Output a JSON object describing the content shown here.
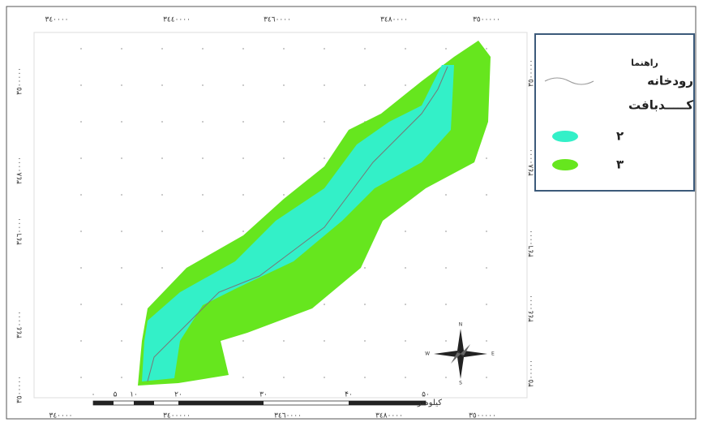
{
  "coords": {
    "top": [
      "۳٤۰۰۰۰",
      "۳٤٤۰۰۰۰",
      "۳٤٦۰۰۰۰",
      "۳٤۸۰۰۰۰",
      "۳٥۰۰۰۰۰"
    ],
    "bottom": [
      "۳٤۰۰۰۰",
      "۳٤۰۰۰۰۰",
      "۳٤٦۰۰۰۰",
      "۳٤۸۰۰۰۰",
      "۳٥۰۰۰۰۰"
    ],
    "left": [
      "۳٥۰۰۰۰۰",
      "۳٤۸۰۰۰۰",
      "۳٤٦۰۰۰۰",
      "۳٤٤۰۰۰۰",
      "۳٥۰۰۰۰۰"
    ],
    "right": [
      "۳٥۰۰۰۰۰",
      "۳٤۸۰۰۰۰",
      "۳٤٦۰۰۰۰",
      "۳٤٤۰۰۰۰",
      "۳٥۰۰۰۰۰"
    ]
  },
  "legend": {
    "title": "راهنما",
    "river": "رودخانه",
    "subtitle": "کـــــدبافت",
    "items": [
      "۲",
      "۳"
    ]
  },
  "scale_bar": {
    "labels": [
      "۰",
      "۵",
      "۱۰",
      "۲۰",
      "۳۰",
      "۴۰",
      "۵۰"
    ],
    "unit": "کیلومتر"
  },
  "compass": {
    "n": "N",
    "s": "S",
    "e": "E",
    "w": "W"
  }
}
